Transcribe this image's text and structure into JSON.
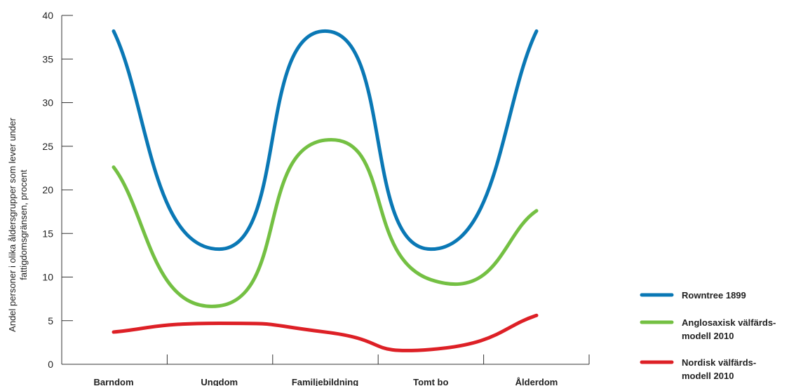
{
  "chart_data": {
    "type": "line",
    "title": "",
    "xlabel": "",
    "ylabel_lines": [
      "Andel personer i olika åldersgrupper som lever under",
      "fattigdomsgränsen, procent"
    ],
    "categories": [
      "Barndom",
      "Ungdom",
      "Familjebildning",
      "Tomt bo",
      "Ålderdom"
    ],
    "yticks": [
      0,
      5,
      10,
      15,
      20,
      25,
      30,
      35,
      40
    ],
    "ylim": [
      0,
      40
    ],
    "grid": false,
    "legend_position": "right",
    "series": [
      {
        "name_lines": [
          "Rowntree 1899"
        ],
        "color": "#0a78b5",
        "values": [
          38.2,
          13.2,
          38.2,
          13.2,
          38.2
        ]
      },
      {
        "name_lines": [
          "Anglosaxisk välfärds-",
          "modell 2010"
        ],
        "color": "#74c043",
        "values": [
          22.6,
          6.7,
          25.7,
          9.7,
          17.6
        ]
      },
      {
        "name_lines": [
          "Nordisk välfärds-",
          "modell 2010"
        ],
        "color": "#dd2026",
        "values": [
          3.7,
          4.7,
          3.7,
          1.7,
          5.6
        ]
      }
    ]
  }
}
